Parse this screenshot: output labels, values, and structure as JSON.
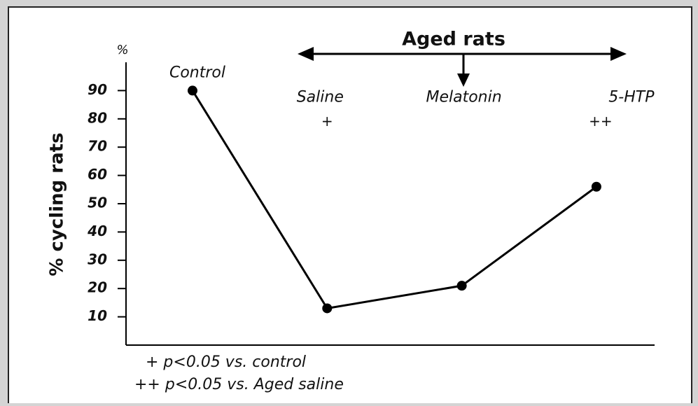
{
  "chart_data": {
    "type": "line",
    "title": "Aged rats",
    "y_label": "% cycling rats",
    "y_unit": "%",
    "categories": [
      "Control",
      "Saline",
      "Melatonin",
      "5-HTP"
    ],
    "significance": [
      null,
      "+",
      null,
      "++"
    ],
    "series": [
      {
        "name": "% cycling rats",
        "color": "#000000",
        "values": [
          90,
          13,
          21,
          56
        ]
      }
    ],
    "ylim": [
      0,
      100
    ],
    "yticks": [
      10,
      20,
      30,
      40,
      50,
      60,
      70,
      80,
      90
    ],
    "footnotes": [
      "+ p<0.05 vs. control",
      "++ p<0.05 vs. Aged saline"
    ]
  }
}
